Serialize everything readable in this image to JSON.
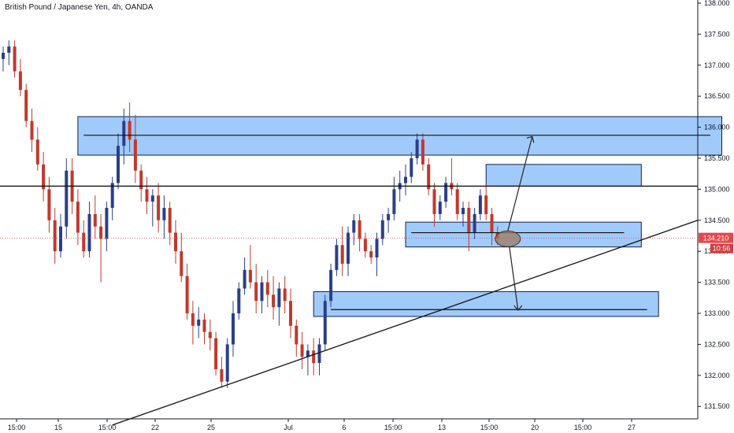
{
  "title": "British Pound / Japanese Yen, 4h, OANDA",
  "colors": {
    "up": "#2a3f8a",
    "down": "#c0392b",
    "zone_fill": "rgba(66,150,245,0.5)",
    "zone_stroke": "#13204a",
    "ellipse_fill": "rgba(160,120,95,0.75)",
    "price_badge": "#e8474a",
    "time_badge": "#d23b3f",
    "line": "#111111"
  },
  "chart_data": {
    "type": "candlestick",
    "ylim": [
      131.3,
      138.05
    ],
    "y_ticks": [
      "138.000",
      "137.500",
      "137.000",
      "136.500",
      "136.000",
      "135.500",
      "135.000",
      "134.500",
      "134.000",
      "133.500",
      "133.000",
      "132.500",
      "132.000",
      "131.500"
    ],
    "x_ticks": [
      "15:00",
      "15",
      "15:00",
      "22",
      "25",
      "Jul",
      "6",
      "15:00",
      "13",
      "15:00",
      "20",
      "15:00",
      "27"
    ],
    "last_price": "134.210",
    "countdown": "10:56",
    "ohlc": [
      [
        137.1,
        137.3,
        136.9,
        137.2
      ],
      [
        137.2,
        137.4,
        137.0,
        137.3
      ],
      [
        137.3,
        137.4,
        136.8,
        136.9
      ],
      [
        136.9,
        137.1,
        136.5,
        136.6
      ],
      [
        136.6,
        136.7,
        136.0,
        136.1
      ],
      [
        136.1,
        136.3,
        135.6,
        135.8
      ],
      [
        135.8,
        136.0,
        135.3,
        135.4
      ],
      [
        135.4,
        135.6,
        134.8,
        135.0
      ],
      [
        135.0,
        135.2,
        134.3,
        134.5
      ],
      [
        134.5,
        134.7,
        133.8,
        134.0
      ],
      [
        134.0,
        134.6,
        133.9,
        134.4
      ],
      [
        134.4,
        135.5,
        134.2,
        135.3
      ],
      [
        135.3,
        135.5,
        134.6,
        134.8
      ],
      [
        134.8,
        135.0,
        134.1,
        134.3
      ],
      [
        134.3,
        134.5,
        133.9,
        134.0
      ],
      [
        134.0,
        134.8,
        133.9,
        134.6
      ],
      [
        134.6,
        134.9,
        134.2,
        134.4
      ],
      [
        134.4,
        134.6,
        133.5,
        134.2
      ],
      [
        134.2,
        134.8,
        134.0,
        134.7
      ],
      [
        134.7,
        135.2,
        134.5,
        135.1
      ],
      [
        135.1,
        135.9,
        135.0,
        135.7
      ],
      [
        135.7,
        136.3,
        135.4,
        136.1
      ],
      [
        136.1,
        136.4,
        135.6,
        135.8
      ],
      [
        135.8,
        136.2,
        135.1,
        135.3
      ],
      [
        135.3,
        135.4,
        134.8,
        135.0
      ],
      [
        135.0,
        135.2,
        134.6,
        134.8
      ],
      [
        134.8,
        135.0,
        134.4,
        134.9
      ],
      [
        134.9,
        135.1,
        134.3,
        134.5
      ],
      [
        134.5,
        134.9,
        134.2,
        134.7
      ],
      [
        134.7,
        134.8,
        134.1,
        134.3
      ],
      [
        134.3,
        134.5,
        133.8,
        134.0
      ],
      [
        134.0,
        134.3,
        133.5,
        133.6
      ],
      [
        133.6,
        133.8,
        132.9,
        133.0
      ],
      [
        133.0,
        133.2,
        132.5,
        132.8
      ],
      [
        132.8,
        133.1,
        132.6,
        132.9
      ],
      [
        132.9,
        133.0,
        132.5,
        132.7
      ],
      [
        132.7,
        132.9,
        132.4,
        132.6
      ],
      [
        132.6,
        132.7,
        132.0,
        132.1
      ],
      [
        132.1,
        132.3,
        131.8,
        131.9
      ],
      [
        131.9,
        132.6,
        131.8,
        132.5
      ],
      [
        132.5,
        133.2,
        132.3,
        133.0
      ],
      [
        133.0,
        133.5,
        132.9,
        133.4
      ],
      [
        133.4,
        133.9,
        133.3,
        133.7
      ],
      [
        133.7,
        134.1,
        133.4,
        133.5
      ],
      [
        133.5,
        133.8,
        133.0,
        133.2
      ],
      [
        133.2,
        133.6,
        133.0,
        133.5
      ],
      [
        133.5,
        133.7,
        133.1,
        133.3
      ],
      [
        133.3,
        133.6,
        132.9,
        133.1
      ],
      [
        133.1,
        133.5,
        132.8,
        133.4
      ],
      [
        133.4,
        133.6,
        133.0,
        133.2
      ],
      [
        133.2,
        133.4,
        132.6,
        132.8
      ],
      [
        132.8,
        132.9,
        132.3,
        132.5
      ],
      [
        132.5,
        132.7,
        132.1,
        132.3
      ],
      [
        132.3,
        132.5,
        132.0,
        132.4
      ],
      [
        132.4,
        132.6,
        132.0,
        132.2
      ],
      [
        132.2,
        132.6,
        132.0,
        132.5
      ],
      [
        132.5,
        133.3,
        132.4,
        133.2
      ],
      [
        133.2,
        133.8,
        133.1,
        133.7
      ],
      [
        133.7,
        134.2,
        133.6,
        134.1
      ],
      [
        134.1,
        134.4,
        133.6,
        133.8
      ],
      [
        133.8,
        134.4,
        133.6,
        134.3
      ],
      [
        134.3,
        134.6,
        134.1,
        134.5
      ],
      [
        134.5,
        134.6,
        134.0,
        134.2
      ],
      [
        134.2,
        134.3,
        133.9,
        134.0
      ],
      [
        134.0,
        134.1,
        133.8,
        133.9
      ],
      [
        133.9,
        134.3,
        133.6,
        134.2
      ],
      [
        134.2,
        134.6,
        134.1,
        134.5
      ],
      [
        134.5,
        134.7,
        134.3,
        134.6
      ],
      [
        134.6,
        135.2,
        134.5,
        135.0
      ],
      [
        135.0,
        135.3,
        134.8,
        135.1
      ],
      [
        135.1,
        135.4,
        134.9,
        135.2
      ],
      [
        135.2,
        135.6,
        135.1,
        135.5
      ],
      [
        135.5,
        135.9,
        135.4,
        135.8
      ],
      [
        135.8,
        135.9,
        135.3,
        135.4
      ],
      [
        135.4,
        135.5,
        134.9,
        135.0
      ],
      [
        135.0,
        135.1,
        134.4,
        134.6
      ],
      [
        134.6,
        134.9,
        134.5,
        134.8
      ],
      [
        134.8,
        135.2,
        134.7,
        135.1
      ],
      [
        135.1,
        135.5,
        134.9,
        135.0
      ],
      [
        135.0,
        135.1,
        134.5,
        134.6
      ],
      [
        134.6,
        134.8,
        134.4,
        134.7
      ],
      [
        134.7,
        134.8,
        134.0,
        134.3
      ],
      [
        134.3,
        134.7,
        134.2,
        134.6
      ],
      [
        134.6,
        135.0,
        134.5,
        134.9
      ],
      [
        134.9,
        135.1,
        134.5,
        134.6
      ],
      [
        134.6,
        134.7,
        134.1,
        134.3
      ],
      [
        134.3,
        134.4,
        134.1,
        134.21
      ]
    ],
    "zones": [
      {
        "t0": 13,
        "t1": 125,
        "p_low": 135.55,
        "p_high": 136.17
      },
      {
        "t0": 84,
        "t1": 111,
        "p_low": 135.05,
        "p_high": 135.4
      },
      {
        "t0": 70,
        "t1": 111,
        "p_low": 134.07,
        "p_high": 134.47
      },
      {
        "t0": 54,
        "t1": 114,
        "p_low": 132.95,
        "p_high": 133.35
      }
    ],
    "h_lines": [
      {
        "t0": 14,
        "t1": 123,
        "p": 135.87
      },
      {
        "t0": 71,
        "t1": 108,
        "p": 134.3
      },
      {
        "t0": 57,
        "t1": 112,
        "p": 133.06
      }
    ],
    "key_level": 135.05,
    "trendline": {
      "t0": 19,
      "p0": 131.2,
      "p1": 134.5
    }
  }
}
